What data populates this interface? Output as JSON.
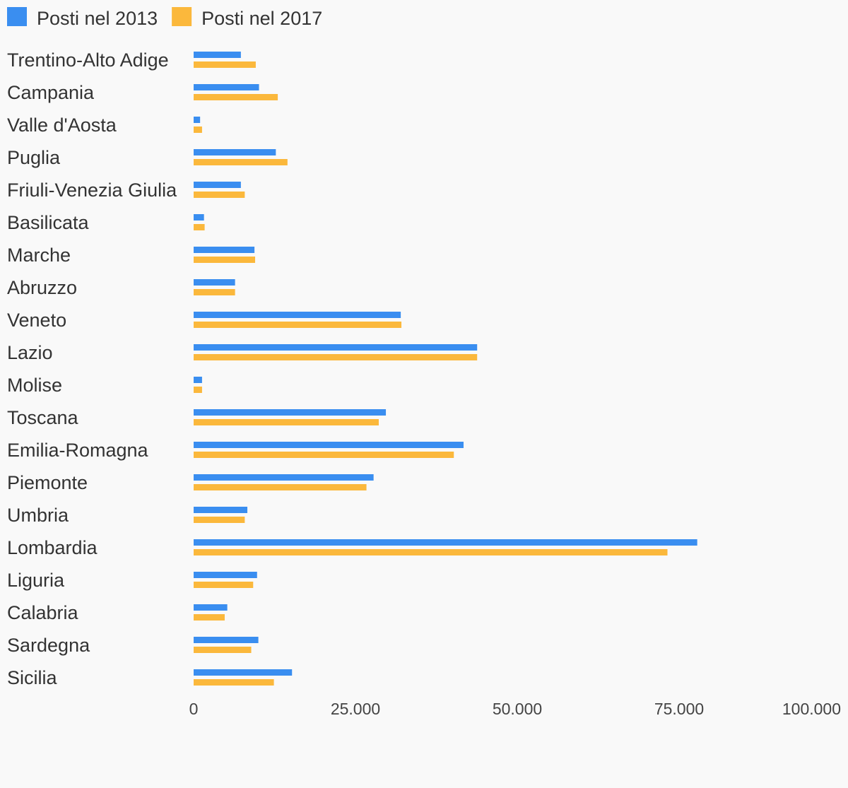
{
  "chart_data": {
    "type": "bar",
    "orientation": "horizontal",
    "categories": [
      "Trentino-Alto Adige",
      "Campania",
      "Valle d'Aosta",
      "Puglia",
      "Friuli-Venezia Giulia",
      "Basilicata",
      "Marche",
      "Abruzzo",
      "Veneto",
      "Lazio",
      "Molise",
      "Toscana",
      "Emilia-Romagna",
      "Piemonte",
      "Umbria",
      "Lombardia",
      "Liguria",
      "Calabria",
      "Sardegna",
      "Sicilia"
    ],
    "series": [
      {
        "name": "Posti nel 2013",
        "color": "#3a8ef0",
        "values": [
          7300,
          10100,
          1000,
          12700,
          7300,
          1600,
          9400,
          6400,
          32000,
          43800,
          1300,
          29700,
          41700,
          27800,
          8300,
          77800,
          9800,
          5200,
          10000,
          15200
        ]
      },
      {
        "name": "Posti nel 2017",
        "color": "#fbb83c",
        "values": [
          9600,
          13000,
          1300,
          14500,
          7900,
          1700,
          9500,
          6400,
          32100,
          43800,
          1300,
          28600,
          40200,
          26700,
          7900,
          73200,
          9200,
          4800,
          8900,
          12400
        ]
      }
    ],
    "xlim": [
      0,
      100000
    ],
    "x_ticks": [
      0,
      25000,
      50000,
      75000,
      100000
    ],
    "x_tick_labels": [
      "0",
      "25.000",
      "50.000",
      "75.000",
      "100.000"
    ],
    "legend_position": "top-left",
    "grid": false,
    "title": "",
    "xlabel": "",
    "ylabel": ""
  }
}
